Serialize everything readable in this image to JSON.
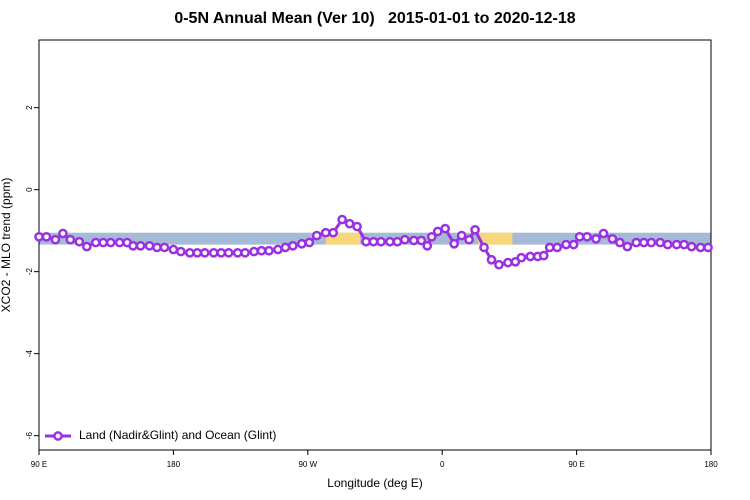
{
  "chart_data": {
    "type": "line",
    "title": "0-5N Annual Mean (Ver 10)   2015-01-01 to 2020-12-18",
    "xlabel": "Longitude (deg E)",
    "ylabel": "XCO2 - MLO trend (ppm)",
    "xlim": [
      90,
      540
    ],
    "ylim": [
      -6.35,
      3.65
    ],
    "xticks": [
      {
        "value": 90,
        "label": "90 E"
      },
      180,
      {
        "value": 270,
        "label": "90 W"
      },
      {
        "value": 360,
        "label": "0"
      },
      {
        "value": 450,
        "label": "90 E"
      },
      {
        "value": 540,
        "label": "180"
      }
    ],
    "yticks": [
      2,
      0,
      -2,
      -4,
      -6
    ],
    "band": [
      -1.34,
      -1.05
    ],
    "band_color": "#a5bad6",
    "highlight_ranges": [
      [
        282,
        305
      ],
      [
        384,
        407
      ]
    ],
    "highlight_color": "#f8d67c",
    "legend": "bottom-left",
    "x": [
      90,
      95,
      101,
      106,
      111,
      117,
      122,
      128,
      133,
      138,
      144,
      149,
      153,
      158,
      164,
      169,
      174,
      180,
      185,
      191,
      196,
      201,
      207,
      212,
      217,
      223,
      228,
      234,
      239,
      244,
      250,
      255,
      260,
      266,
      271,
      276,
      282,
      287,
      293,
      298,
      303,
      309,
      314,
      319,
      325,
      330,
      335,
      341,
      346,
      350,
      353,
      357,
      362,
      368,
      373,
      378,
      382,
      388,
      393,
      398,
      404,
      409,
      413,
      419,
      424,
      428,
      432,
      437,
      443,
      448,
      452,
      457,
      463,
      468,
      474,
      479,
      484,
      490,
      495,
      500,
      506,
      511,
      517,
      522,
      527,
      533,
      538
    ],
    "series": [
      {
        "name": "Land (Nadir&Glint) and Ocean (Glint)",
        "color": "#9b30e3",
        "values": [
          -1.15,
          -1.15,
          -1.22,
          -1.07,
          -1.22,
          -1.27,
          -1.39,
          -1.29,
          -1.29,
          -1.29,
          -1.29,
          -1.29,
          -1.37,
          -1.37,
          -1.37,
          -1.41,
          -1.41,
          -1.46,
          -1.51,
          -1.54,
          -1.54,
          -1.54,
          -1.54,
          -1.54,
          -1.54,
          -1.54,
          -1.54,
          -1.51,
          -1.49,
          -1.49,
          -1.46,
          -1.41,
          -1.37,
          -1.32,
          -1.29,
          -1.12,
          -1.05,
          -1.05,
          -0.73,
          -0.83,
          -0.9,
          -1.27,
          -1.27,
          -1.27,
          -1.27,
          -1.27,
          -1.22,
          -1.24,
          -1.24,
          -1.37,
          -1.15,
          -1.02,
          -0.95,
          -1.32,
          -1.12,
          -1.22,
          -0.98,
          -1.41,
          -1.71,
          -1.83,
          -1.78,
          -1.76,
          -1.66,
          -1.63,
          -1.63,
          -1.61,
          -1.41,
          -1.41,
          -1.34,
          -1.34,
          -1.15,
          -1.15,
          -1.2,
          -1.07,
          -1.2,
          -1.29,
          -1.39,
          -1.29,
          -1.29,
          -1.29,
          -1.29,
          -1.34,
          -1.34,
          -1.34,
          -1.39,
          -1.41,
          -1.41
        ]
      }
    ]
  }
}
